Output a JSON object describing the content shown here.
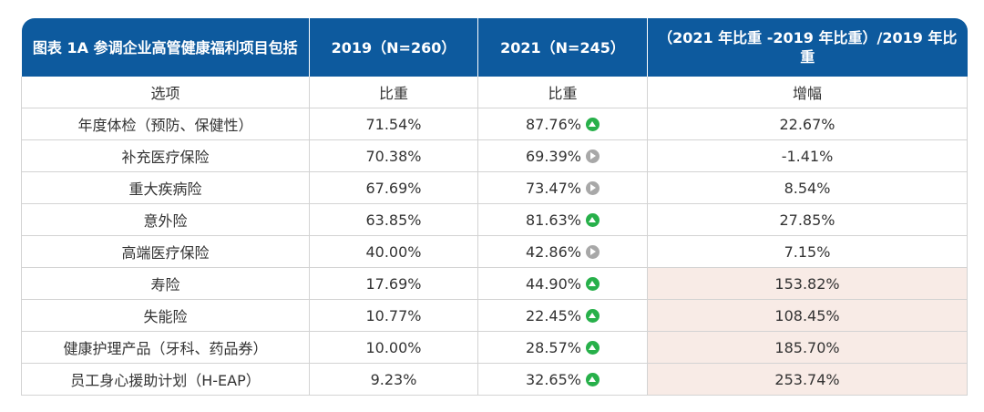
{
  "chart_data": {
    "type": "table",
    "title": "图表 1A 参调企业高管健康福利项目包括",
    "columns": [
      "图表 1A 参调企业高管健康福利项目包括",
      "2019（N=260）",
      "2021（N=245）",
      "（2021 年比重 -2019 年比重）/2019 年比重"
    ],
    "subheader": [
      "选项",
      "比重",
      "比重",
      "增幅"
    ],
    "rows": [
      {
        "item": "年度体检（预防、保健性）",
        "y2019": "71.54%",
        "y2021": "87.76%",
        "trend": "up",
        "growth": "22.67%",
        "highlight": false
      },
      {
        "item": "补充医疗保险",
        "y2019": "70.38%",
        "y2021": "69.39%",
        "trend": "flat",
        "growth": "-1.41%",
        "highlight": false
      },
      {
        "item": "重大疾病险",
        "y2019": "67.69%",
        "y2021": "73.47%",
        "trend": "flat",
        "growth": "8.54%",
        "highlight": false
      },
      {
        "item": "意外险",
        "y2019": "63.85%",
        "y2021": "81.63%",
        "trend": "up",
        "growth": "27.85%",
        "highlight": false
      },
      {
        "item": "高端医疗保险",
        "y2019": "40.00%",
        "y2021": "42.86%",
        "trend": "flat",
        "growth": "7.15%",
        "highlight": false
      },
      {
        "item": "寿险",
        "y2019": "17.69%",
        "y2021": "44.90%",
        "trend": "up",
        "growth": "153.82%",
        "highlight": true
      },
      {
        "item": "失能险",
        "y2019": "10.77%",
        "y2021": "22.45%",
        "trend": "up",
        "growth": "108.45%",
        "highlight": true
      },
      {
        "item": "健康护理产品（牙科、药品券）",
        "y2019": "10.00%",
        "y2021": "28.57%",
        "trend": "up",
        "growth": "185.70%",
        "highlight": true
      },
      {
        "item": "员工身心援助计划（H-EAP）",
        "y2019": "9.23%",
        "y2021": "32.65%",
        "trend": "up",
        "growth": "253.74%",
        "highlight": true
      }
    ],
    "colors": {
      "header": "#0d5a9e",
      "highlight": "#f8ebe6",
      "up": "#27b04a",
      "flat": "#a8a8a8"
    }
  }
}
